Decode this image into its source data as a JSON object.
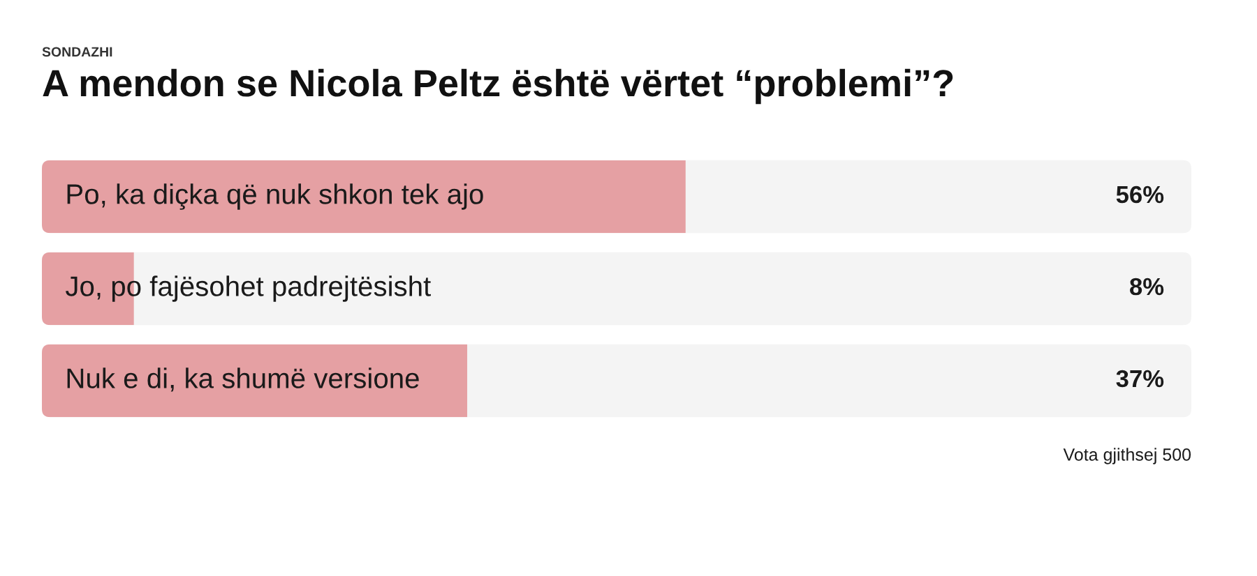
{
  "chart_data": {
    "type": "bar",
    "orientation": "horizontal",
    "subtitle": "SONDAZHI",
    "title": "A mendon se Nicola Peltz është vërtet “problemi”?",
    "categories": [
      "Po, ka diçka që nuk shkon tek ajo",
      "Jo, po fajësohet padrejtësisht",
      "Nuk e di, ka shumë versione"
    ],
    "values": [
      56,
      8,
      37
    ],
    "value_labels": [
      "56%",
      "8%",
      "37%"
    ],
    "color": "#e5a0a3",
    "xlim": [
      0,
      100
    ],
    "tick_labels": false,
    "annotations": [
      "Vota gjithsej 500"
    ]
  }
}
